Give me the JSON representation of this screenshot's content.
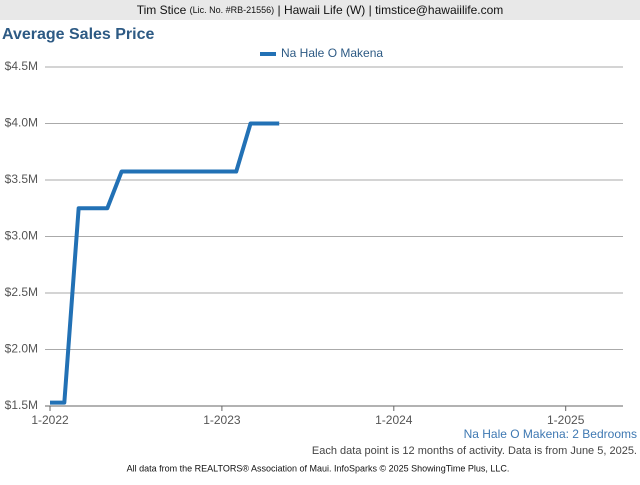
{
  "header": {
    "name": "Tim Stice",
    "license": "(Lic. No. #RB-21556)",
    "rest": "| Hawaii Life (W) | timstice@hawaiilife.com"
  },
  "chart_data": {
    "type": "line",
    "title": "Average Sales Price",
    "x": [
      "2022-01",
      "2022-02",
      "2022-03",
      "2022-04",
      "2022-05",
      "2022-06",
      "2022-07",
      "2022-08",
      "2022-09",
      "2022-10",
      "2022-11",
      "2022-12",
      "2023-01",
      "2023-02",
      "2023-03",
      "2023-04",
      "2023-05"
    ],
    "series": [
      {
        "name": "Na Hale O Makena",
        "color": "#2271b5",
        "values": [
          1530000,
          1530000,
          3250000,
          3250000,
          3250000,
          3575000,
          3575000,
          3575000,
          3575000,
          3575000,
          3575000,
          3575000,
          3575000,
          3575000,
          4000000,
          4000000,
          4000000
        ]
      }
    ],
    "xlim": [
      "2022-01",
      "2025-05"
    ],
    "xticks": [
      {
        "value": "2022-01",
        "label": "1-2022"
      },
      {
        "value": "2023-01",
        "label": "1-2023"
      },
      {
        "value": "2024-01",
        "label": "1-2024"
      },
      {
        "value": "2025-01",
        "label": "1-2025"
      }
    ],
    "ylim": [
      1500000,
      4500000
    ],
    "yticks": [
      {
        "value": 1500000,
        "label": "$1.5M"
      },
      {
        "value": 2000000,
        "label": "$2.0M"
      },
      {
        "value": 2500000,
        "label": "$2.5M"
      },
      {
        "value": 3000000,
        "label": "$3.0M"
      },
      {
        "value": 3500000,
        "label": "$3.5M"
      },
      {
        "value": 4000000,
        "label": "$4.0M"
      },
      {
        "value": 4500000,
        "label": "$4.5M"
      }
    ],
    "grid": true,
    "subtitle": "Na Hale O Makena: 2 Bedrooms",
    "note": "Each data point is 12 months of activity. Data is from June 5, 2025.",
    "source": "All data from the REALTORS® Association of Maui. InfoSparks © 2025 ShowingTime Plus, LLC."
  }
}
